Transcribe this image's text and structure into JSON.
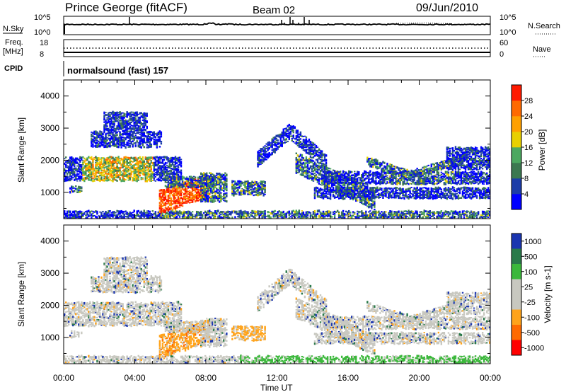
{
  "header": {
    "station": "Prince George (fitACF)",
    "beam": "Beam 02",
    "date": "09/Jun/2010"
  },
  "noise_panel": {
    "left_label": "N.Sky",
    "left_ticks": [
      "10^5",
      "10^0"
    ],
    "right_ticks": [
      "10^5",
      "10^0"
    ],
    "right_label": "N.Search"
  },
  "freq_panel": {
    "left_label_1": "Freq.",
    "left_label_2": "[MHz]",
    "left_ticks": [
      "18",
      "8"
    ],
    "right_ticks": [
      "60",
      "0"
    ],
    "right_label": "Nave"
  },
  "cpid": {
    "label": "CPID",
    "mode": "normalsound (fast) 157"
  },
  "chart_data": [
    {
      "type": "heatmap",
      "title": "",
      "quantity": "Power",
      "ylabel": "Slant Range [km]",
      "xlabel": "Time UT",
      "ylim": [
        180,
        4500
      ],
      "y_ticks": [
        "1000",
        "2000",
        "3000",
        "4000"
      ],
      "x_ticks": [
        "00:00",
        "04:00",
        "08:00",
        "12:00",
        "16:00",
        "20:00",
        "00:00"
      ],
      "colorbar": {
        "label": "Power [dB]",
        "ticks": [
          "4",
          "8",
          "12",
          "16",
          "20",
          "24",
          "28"
        ],
        "colors": [
          "#0000ff",
          "#1c3ca8",
          "#3c7850",
          "#4ca860",
          "#e8d000",
          "#ffa000",
          "#ff6a00",
          "#ff1a00"
        ]
      }
    },
    {
      "type": "heatmap",
      "title": "",
      "quantity": "Velocity",
      "ylabel": "Slant Range [km]",
      "xlabel": "Time UT",
      "ylim": [
        180,
        4500
      ],
      "y_ticks": [
        "1000",
        "2000",
        "3000",
        "4000"
      ],
      "x_ticks": [
        "00:00",
        "04:00",
        "08:00",
        "12:00",
        "16:00",
        "20:00",
        "00:00"
      ],
      "colorbar": {
        "label": "Velocity [m s-1]",
        "ticks": [
          "1000",
          "500",
          "100",
          "25",
          "-25",
          "-100",
          "-500",
          "-1000"
        ],
        "colors": [
          "#1a35b0",
          "#2a7a4a",
          "#3cb83c",
          "#c8c8c0",
          "#c8c8c0",
          "#ffa31a",
          "#ff6a00",
          "#ff0000"
        ]
      }
    }
  ],
  "axis": {
    "xlabel": "Time UT"
  }
}
